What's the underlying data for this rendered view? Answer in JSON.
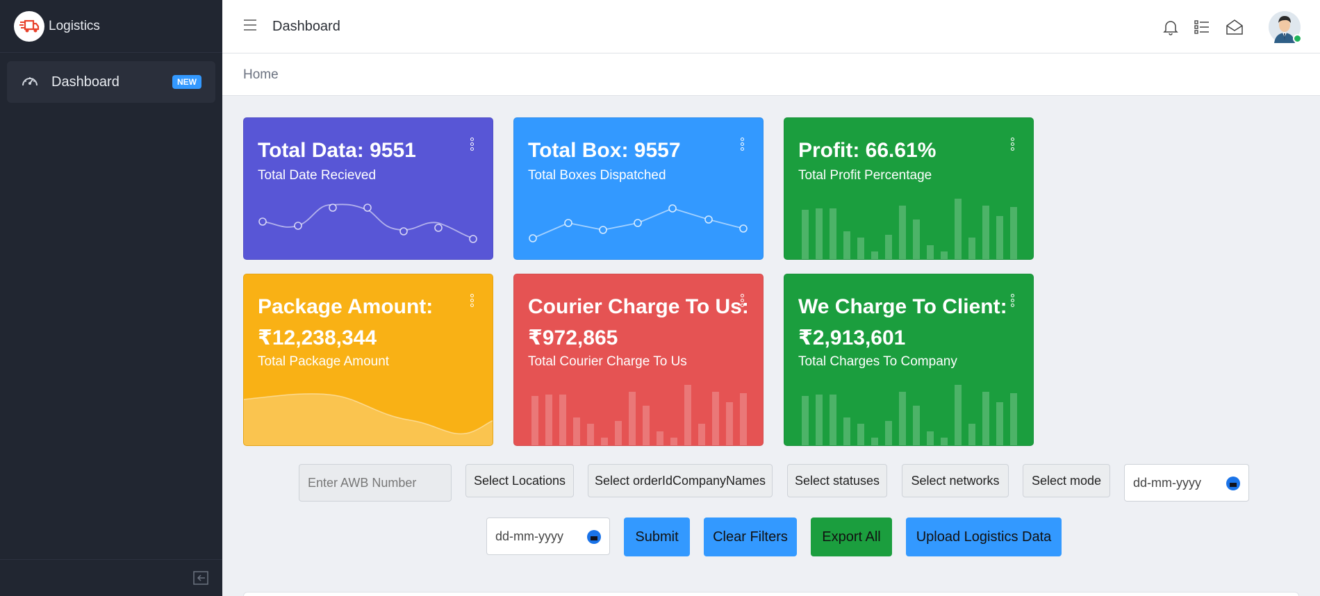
{
  "brand": {
    "name": "Logistics"
  },
  "sidebar": {
    "items": [
      {
        "label": "Dashboard",
        "badge": "NEW",
        "icon": "speedometer-icon"
      }
    ]
  },
  "header": {
    "title": "Dashboard",
    "icons": [
      "bell-icon",
      "list-icon",
      "envelope-open-icon"
    ]
  },
  "breadcrumb": {
    "home": "Home"
  },
  "cards": {
    "total_data": {
      "title": "Total Data: 9551",
      "subtitle": "Total Date Recieved",
      "color": "#5856d6"
    },
    "total_box": {
      "title": "Total Box: 9557",
      "subtitle": "Total Boxes Dispatched",
      "color": "#3399ff"
    },
    "profit": {
      "title": "Profit: 66.61%",
      "subtitle": "Total Profit Percentage",
      "color": "#1b9e3e"
    },
    "package_amount": {
      "title_line1": "Package Amount:",
      "title_line2": "₹12,238,344",
      "subtitle": "Total Package Amount",
      "color": "#f9b115"
    },
    "courier_charge": {
      "title_line1": "Courier Charge To Us:",
      "title_line2": "₹972,865",
      "subtitle": "Total Courier Charge To Us",
      "color": "#e55353"
    },
    "client_charge": {
      "title_line1": "We Charge To Client:",
      "title_line2": "₹2,913,601",
      "subtitle": "Total Charges To Company",
      "color": "#1b9e3e"
    }
  },
  "filters": {
    "awb_placeholder": "Enter AWB Number",
    "locations": "Select Locations",
    "company_names": "Select orderIdCompanyNames",
    "statuses": "Select statuses",
    "networks": "Select networks",
    "mode": "Select mode",
    "date_from": "dd-mm-yyyy",
    "date_to": "dd-mm-yyyy"
  },
  "actions": {
    "submit": "Submit",
    "clear": "Clear Filters",
    "export": "Export All",
    "upload": "Upload Logistics Data"
  }
}
